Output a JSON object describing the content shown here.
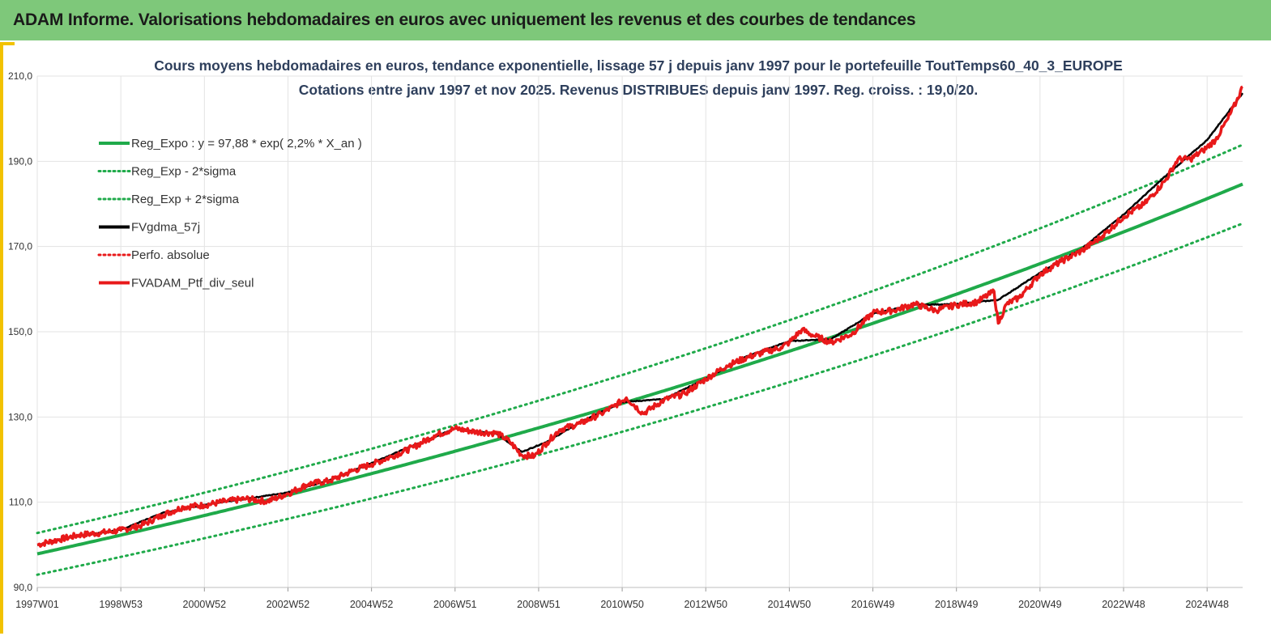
{
  "banner": {
    "title": "ADAM Informe. Valorisations hebdomadaires en euros avec uniquement les revenus et des courbes de tendances"
  },
  "colors": {
    "banner_bg": "#7ec87a",
    "frame_accent": "#f2c200",
    "reg_expo": "#1faa4a",
    "fvgdma": "#000000",
    "portfolio": "#e8191a",
    "title_text": "#2e3f5c"
  },
  "chart_data": {
    "type": "line",
    "title_line1": "Cours moyens hebdomadaires  en euros, tendance exponentielle, lissage 57 j depuis janv 1997 pour le portefeuille ToutTemps60_40_3_EUROPE",
    "title_line2": "Cotations entre janv 1997 et nov 2025. Revenus DISTRIBUES depuis janv 1997. Reg. croiss. : 19,0/20.",
    "xlabel": "",
    "ylabel": "",
    "ylim": [
      90,
      210
    ],
    "yticks": [
      90,
      110,
      130,
      150,
      170,
      190,
      210
    ],
    "ytick_labels": [
      "90,0",
      "110,0",
      "130,0",
      "150,0",
      "170,0",
      "190,0",
      "210,0"
    ],
    "xlim": [
      1997.0,
      2025.85
    ],
    "xticks": [
      1997.0,
      1999.0,
      2001.0,
      2003.0,
      2005.0,
      2007.0,
      2009.0,
      2011.0,
      2013.0,
      2015.0,
      2017.0,
      2019.0,
      2021.0,
      2023.0,
      2025.0
    ],
    "xtick_labels": [
      "1997W01",
      "1998W53",
      "2000W52",
      "2002W52",
      "2004W52",
      "2006W51",
      "2008W51",
      "2010W50",
      "2012W50",
      "2014W50",
      "2016W49",
      "2018W49",
      "2020W49",
      "2022W48",
      "2024W48"
    ],
    "grid": true,
    "legend_position": "top-left",
    "legend": [
      {
        "label": "Reg_Expo : y = 97,88 * exp( 2,2% *  X_an )",
        "color": "#1faa4a",
        "style": "solid"
      },
      {
        "label": "Reg_Exp - 2*sigma",
        "color": "#1faa4a",
        "style": "dotted"
      },
      {
        "label": "Reg_Exp + 2*sigma",
        "color": "#1faa4a",
        "style": "dotted"
      },
      {
        "label": "FVgdma_57j",
        "color": "#000000",
        "style": "solid"
      },
      {
        "label": "Perfo. absolue",
        "color": "#e8191a",
        "style": "dotted"
      },
      {
        "label": "FVADAM_Ptf_div_seul",
        "color": "#e8191a",
        "style": "solid"
      }
    ],
    "regression": {
      "a": 97.88,
      "rate": 0.022,
      "x0": 1997.0,
      "sigma_band": 5.0
    },
    "series": [
      {
        "name": "FVADAM_Ptf_div_seul",
        "x": [
          1997.0,
          1997.5,
          1998.0,
          1998.5,
          1999.0,
          1999.5,
          2000.0,
          2000.5,
          2001.0,
          2001.5,
          2002.0,
          2002.5,
          2003.0,
          2003.5,
          2004.0,
          2004.5,
          2005.0,
          2005.5,
          2006.0,
          2006.5,
          2007.0,
          2007.5,
          2008.0,
          2008.3,
          2008.6,
          2008.9,
          2009.2,
          2009.5,
          2010.0,
          2010.5,
          2010.8,
          2011.1,
          2011.5,
          2012.0,
          2012.5,
          2013.0,
          2013.5,
          2014.0,
          2014.5,
          2014.8,
          2015.0,
          2015.3,
          2015.6,
          2016.0,
          2016.5,
          2017.0,
          2017.5,
          2018.0,
          2018.5,
          2019.0,
          2019.5,
          2019.9,
          2020.0,
          2020.2,
          2020.5,
          2021.0,
          2021.5,
          2022.0,
          2022.5,
          2023.0,
          2023.5,
          2024.0,
          2024.3,
          2024.6,
          2024.9,
          2025.2,
          2025.5,
          2025.7,
          2025.85
        ],
        "y": [
          100.0,
          101.2,
          102.3,
          102.8,
          103.4,
          104.6,
          107.0,
          108.9,
          109.3,
          110.2,
          110.8,
          110.2,
          112.0,
          114.3,
          115.0,
          117.2,
          118.9,
          120.8,
          122.9,
          125.6,
          127.3,
          126.5,
          126.2,
          124.3,
          121.0,
          120.8,
          124.0,
          127.0,
          128.5,
          130.8,
          132.5,
          134.5,
          130.8,
          134.0,
          135.5,
          138.9,
          142.0,
          144.0,
          145.5,
          146.3,
          147.5,
          150.5,
          149.0,
          147.5,
          149.5,
          154.5,
          155.0,
          156.5,
          155.0,
          156.3,
          157.0,
          159.5,
          152.0,
          156.5,
          158.0,
          163.5,
          166.5,
          169.0,
          172.5,
          177.0,
          180.0,
          185.5,
          190.5,
          190.5,
          192.5,
          195.0,
          200.0,
          204.0,
          207.5
        ]
      },
      {
        "name": "FVgdma_57j",
        "x": [
          1997.0,
          1998.0,
          1999.0,
          2000.0,
          2001.0,
          2002.0,
          2003.0,
          2004.0,
          2005.0,
          2006.0,
          2007.0,
          2008.0,
          2008.6,
          2009.2,
          2010.0,
          2011.0,
          2012.0,
          2013.0,
          2014.0,
          2015.0,
          2016.0,
          2017.0,
          2018.0,
          2019.0,
          2020.0,
          2021.0,
          2022.0,
          2023.0,
          2024.0,
          2025.0,
          2025.85
        ],
        "y": [
          100.0,
          102.2,
          103.5,
          107.5,
          109.4,
          110.8,
          112.3,
          115.2,
          119.2,
          123.3,
          127.3,
          126.0,
          121.8,
          124.2,
          128.8,
          133.5,
          134.2,
          139.0,
          144.3,
          147.8,
          148.3,
          154.3,
          156.3,
          156.5,
          157.5,
          163.8,
          169.5,
          177.5,
          186.5,
          195.0,
          206.0
        ]
      }
    ]
  }
}
